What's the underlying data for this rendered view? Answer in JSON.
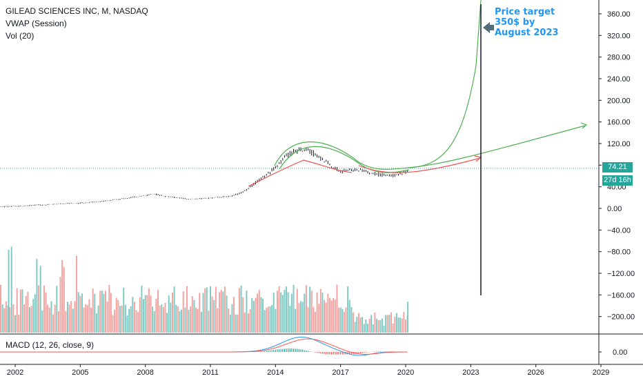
{
  "legend": {
    "symbol": "GILEAD SCIENCES INC, M, NASDAQ",
    "vwap": "VWAP (Session)",
    "vol": "Vol (20)",
    "macd": "MACD (12, 26, close, 9)"
  },
  "annotation": {
    "line1": "Price target",
    "line2": "350$ by",
    "line3": "August 2023"
  },
  "last_price": {
    "value": "74.21",
    "countdown": "27d 16h",
    "color": "#26a69a"
  },
  "colors": {
    "up": "#26a69a",
    "down": "#ef5350",
    "green_curve": "#4caf50",
    "red_curve": "#ef5350",
    "macd": "#2196f3",
    "signal": "#ff5252",
    "annotation": "#2196f3"
  },
  "chart_data": {
    "type": "line",
    "y_ticks": [
      "360.00",
      "320.00",
      "280.00",
      "240.00",
      "200.00",
      "160.00",
      "120.00",
      "80.00",
      "40.00",
      "0.00",
      "−40.00",
      "−80.00",
      "−120.00",
      "−160.00",
      "−200.00"
    ],
    "macd_tick": "0.00",
    "x_ticks": [
      "2002",
      "2005",
      "2008",
      "2011",
      "2014",
      "2017",
      "2020",
      "2023",
      "2026",
      "2029"
    ],
    "ylim": [
      -220,
      380
    ],
    "price_series": {
      "x": [
        2001.0,
        2002.0,
        2003.0,
        2004.0,
        2005.0,
        2006.0,
        2007.0,
        2008.0,
        2008.5,
        2009.0,
        2010.0,
        2011.0,
        2012.0,
        2012.5,
        2013.0,
        2013.5,
        2014.0,
        2014.5,
        2015.0,
        2015.5,
        2016.0,
        2016.5,
        2017.0,
        2017.5,
        2018.0,
        2018.5,
        2019.0,
        2019.5,
        2020.0
      ],
      "y": [
        3,
        4,
        6,
        8,
        10,
        13,
        18,
        24,
        26,
        22,
        17,
        19,
        23,
        30,
        45,
        60,
        75,
        98,
        108,
        110,
        95,
        80,
        68,
        72,
        70,
        64,
        62,
        62,
        68
      ]
    }
  }
}
